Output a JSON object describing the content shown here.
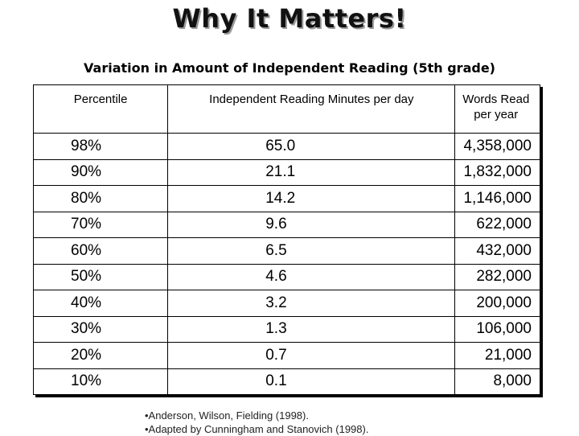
{
  "title": "Why It Matters!",
  "subtitle": "Variation in Amount of Independent Reading  (5th grade)",
  "table": {
    "headers": [
      "Percentile",
      "Independent Reading Minutes per day",
      "Words Read per year"
    ],
    "rows": [
      [
        "98%",
        "65.0",
        "4,358,000"
      ],
      [
        "90%",
        "21.1",
        "1,832,000"
      ],
      [
        "80%",
        "14.2",
        "1,146,000"
      ],
      [
        "70%",
        "9.6",
        "622,000"
      ],
      [
        "60%",
        "6.5",
        "432,000"
      ],
      [
        "50%",
        "4.6",
        "282,000"
      ],
      [
        "40%",
        "3.2",
        "200,000"
      ],
      [
        "30%",
        "1.3",
        "106,000"
      ],
      [
        "20%",
        "0.7",
        "21,000"
      ],
      [
        "10%",
        "0.1",
        "8,000"
      ]
    ]
  },
  "references": [
    "•Anderson, Wilson, Fielding (1998).",
    "•Adapted by Cunningham and Stanovich (1998)."
  ]
}
